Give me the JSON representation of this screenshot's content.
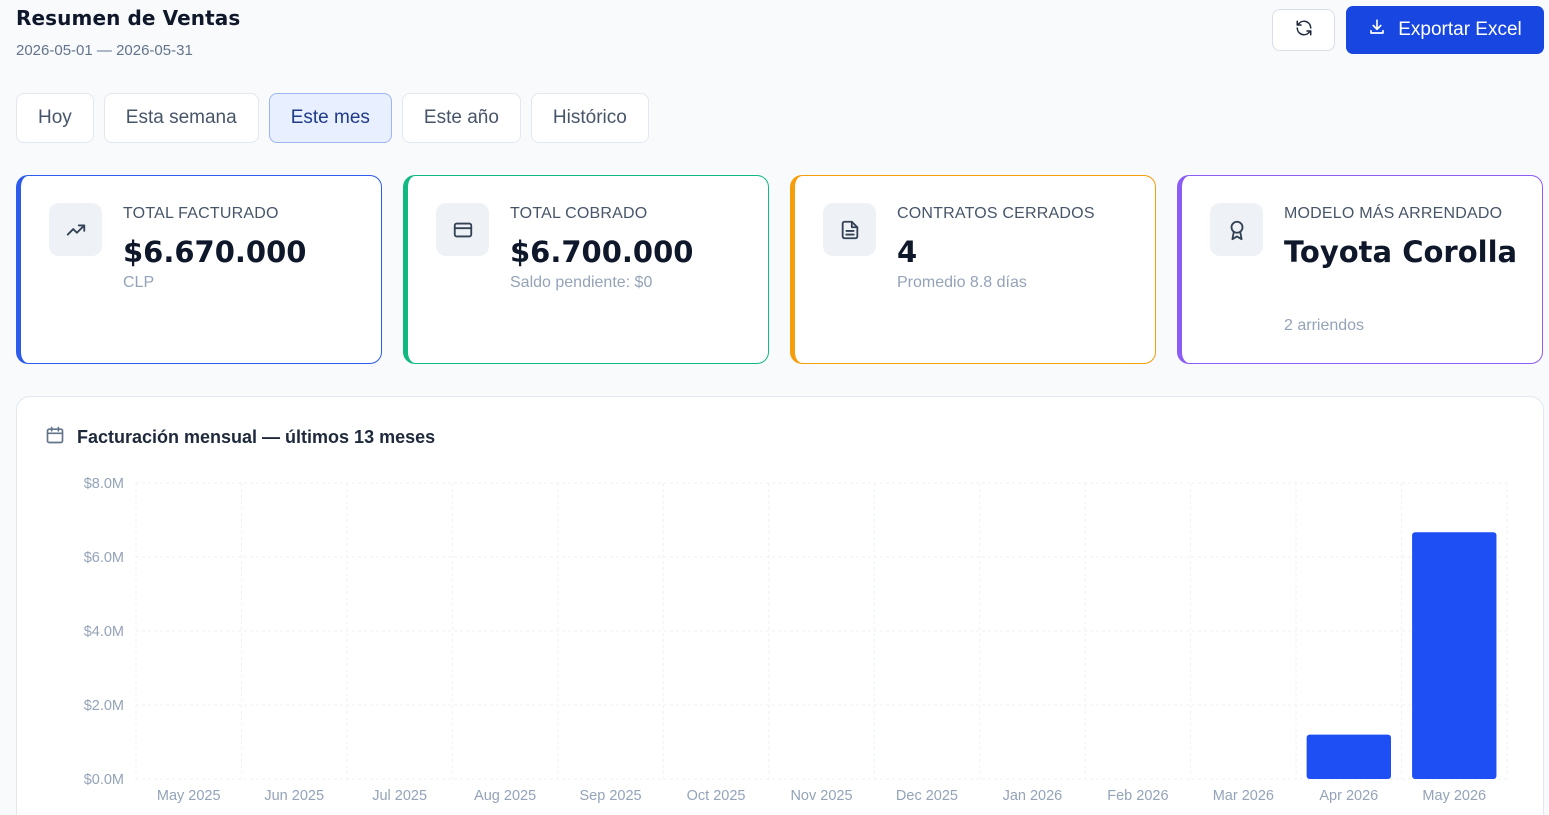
{
  "header": {
    "title": "Resumen de Ventas",
    "date_range": "2026-05-01 — 2026-05-31",
    "refresh_icon": "refresh-icon",
    "export_label": "Exportar Excel",
    "export_icon": "download-icon"
  },
  "tabs": [
    {
      "label": "Hoy",
      "active": false
    },
    {
      "label": "Esta semana",
      "active": false
    },
    {
      "label": "Este mes",
      "active": true
    },
    {
      "label": "Este año",
      "active": false
    },
    {
      "label": "Histórico",
      "active": false
    }
  ],
  "cards": [
    {
      "label": "TOTAL FACTURADO",
      "value": "$6.670.000",
      "sub": "CLP",
      "icon": "trending-up-icon",
      "color": "#2f5bea"
    },
    {
      "label": "TOTAL COBRADO",
      "value": "$6.700.000",
      "sub": "Saldo pendiente: $0",
      "icon": "credit-card-icon",
      "color": "#10b981"
    },
    {
      "label": "CONTRATOS CERRADOS",
      "value": "4",
      "sub": "Promedio 8.8 días",
      "icon": "document-icon",
      "color": "#f59e0b"
    },
    {
      "label": "MODELO MÁS ARRENDADO",
      "value": "Toyota Corolla",
      "sub": "2 arriendos",
      "icon": "award-icon",
      "color": "#8b5cf6"
    }
  ],
  "chart": {
    "title": "Facturación mensual — últimos 13 meses",
    "icon": "calendar-icon"
  },
  "chart_data": {
    "type": "bar",
    "title": "Facturación mensual — últimos 13 meses",
    "categories": [
      "May 2025",
      "Jun 2025",
      "Jul 2025",
      "Aug 2025",
      "Sep 2025",
      "Oct 2025",
      "Nov 2025",
      "Dec 2025",
      "Jan 2026",
      "Feb 2026",
      "Mar 2026",
      "Apr 2026",
      "May 2026"
    ],
    "values": [
      0,
      0,
      0,
      0,
      0,
      0,
      0,
      0,
      0,
      0,
      0,
      1200000,
      6670000
    ],
    "yticks": [
      "$0.0M",
      "$2.0M",
      "$4.0M",
      "$6.0M",
      "$8.0M"
    ],
    "ylim": [
      0,
      8000000
    ],
    "grid": true,
    "bar_color": "#1d4ff5"
  }
}
